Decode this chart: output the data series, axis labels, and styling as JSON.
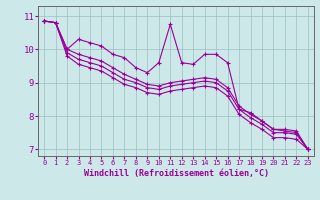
{
  "xlabel": "Windchill (Refroidissement éolien,°C)",
  "background_color": "#cce8e8",
  "line_color": "#990099",
  "x_hours": [
    0,
    1,
    2,
    3,
    4,
    5,
    6,
    7,
    8,
    9,
    10,
    11,
    12,
    13,
    14,
    15,
    16,
    17,
    18,
    19,
    20,
    21,
    22,
    23
  ],
  "series1": [
    10.85,
    10.8,
    10.0,
    10.3,
    10.2,
    10.1,
    9.85,
    9.75,
    9.45,
    9.3,
    9.6,
    10.75,
    9.6,
    9.55,
    9.85,
    9.85,
    9.6,
    8.2,
    8.1,
    7.85,
    7.6,
    7.55,
    7.5,
    7.0
  ],
  "series2": [
    10.85,
    10.8,
    10.0,
    9.85,
    9.75,
    9.65,
    9.45,
    9.25,
    9.1,
    8.95,
    8.9,
    9.0,
    9.05,
    9.1,
    9.15,
    9.1,
    8.85,
    8.3,
    8.05,
    7.85,
    7.6,
    7.6,
    7.55,
    7.0
  ],
  "series3": [
    10.85,
    10.8,
    9.9,
    9.7,
    9.6,
    9.5,
    9.3,
    9.1,
    9.0,
    8.85,
    8.8,
    8.9,
    8.95,
    9.0,
    9.05,
    9.0,
    8.75,
    8.2,
    7.95,
    7.75,
    7.5,
    7.5,
    7.45,
    7.0
  ],
  "series4": [
    10.85,
    10.8,
    9.8,
    9.55,
    9.45,
    9.35,
    9.15,
    8.95,
    8.85,
    8.7,
    8.65,
    8.75,
    8.8,
    8.85,
    8.9,
    8.85,
    8.6,
    8.05,
    7.8,
    7.6,
    7.35,
    7.35,
    7.3,
    7.0
  ],
  "ylim": [
    6.8,
    11.3
  ],
  "yticks": [
    7,
    8,
    9,
    10,
    11
  ],
  "xlim": [
    -0.5,
    23.5
  ],
  "xticks": [
    0,
    1,
    2,
    3,
    4,
    5,
    6,
    7,
    8,
    9,
    10,
    11,
    12,
    13,
    14,
    15,
    16,
    17,
    18,
    19,
    20,
    21,
    22,
    23
  ],
  "figsize": [
    3.2,
    2.0
  ],
  "dpi": 100
}
